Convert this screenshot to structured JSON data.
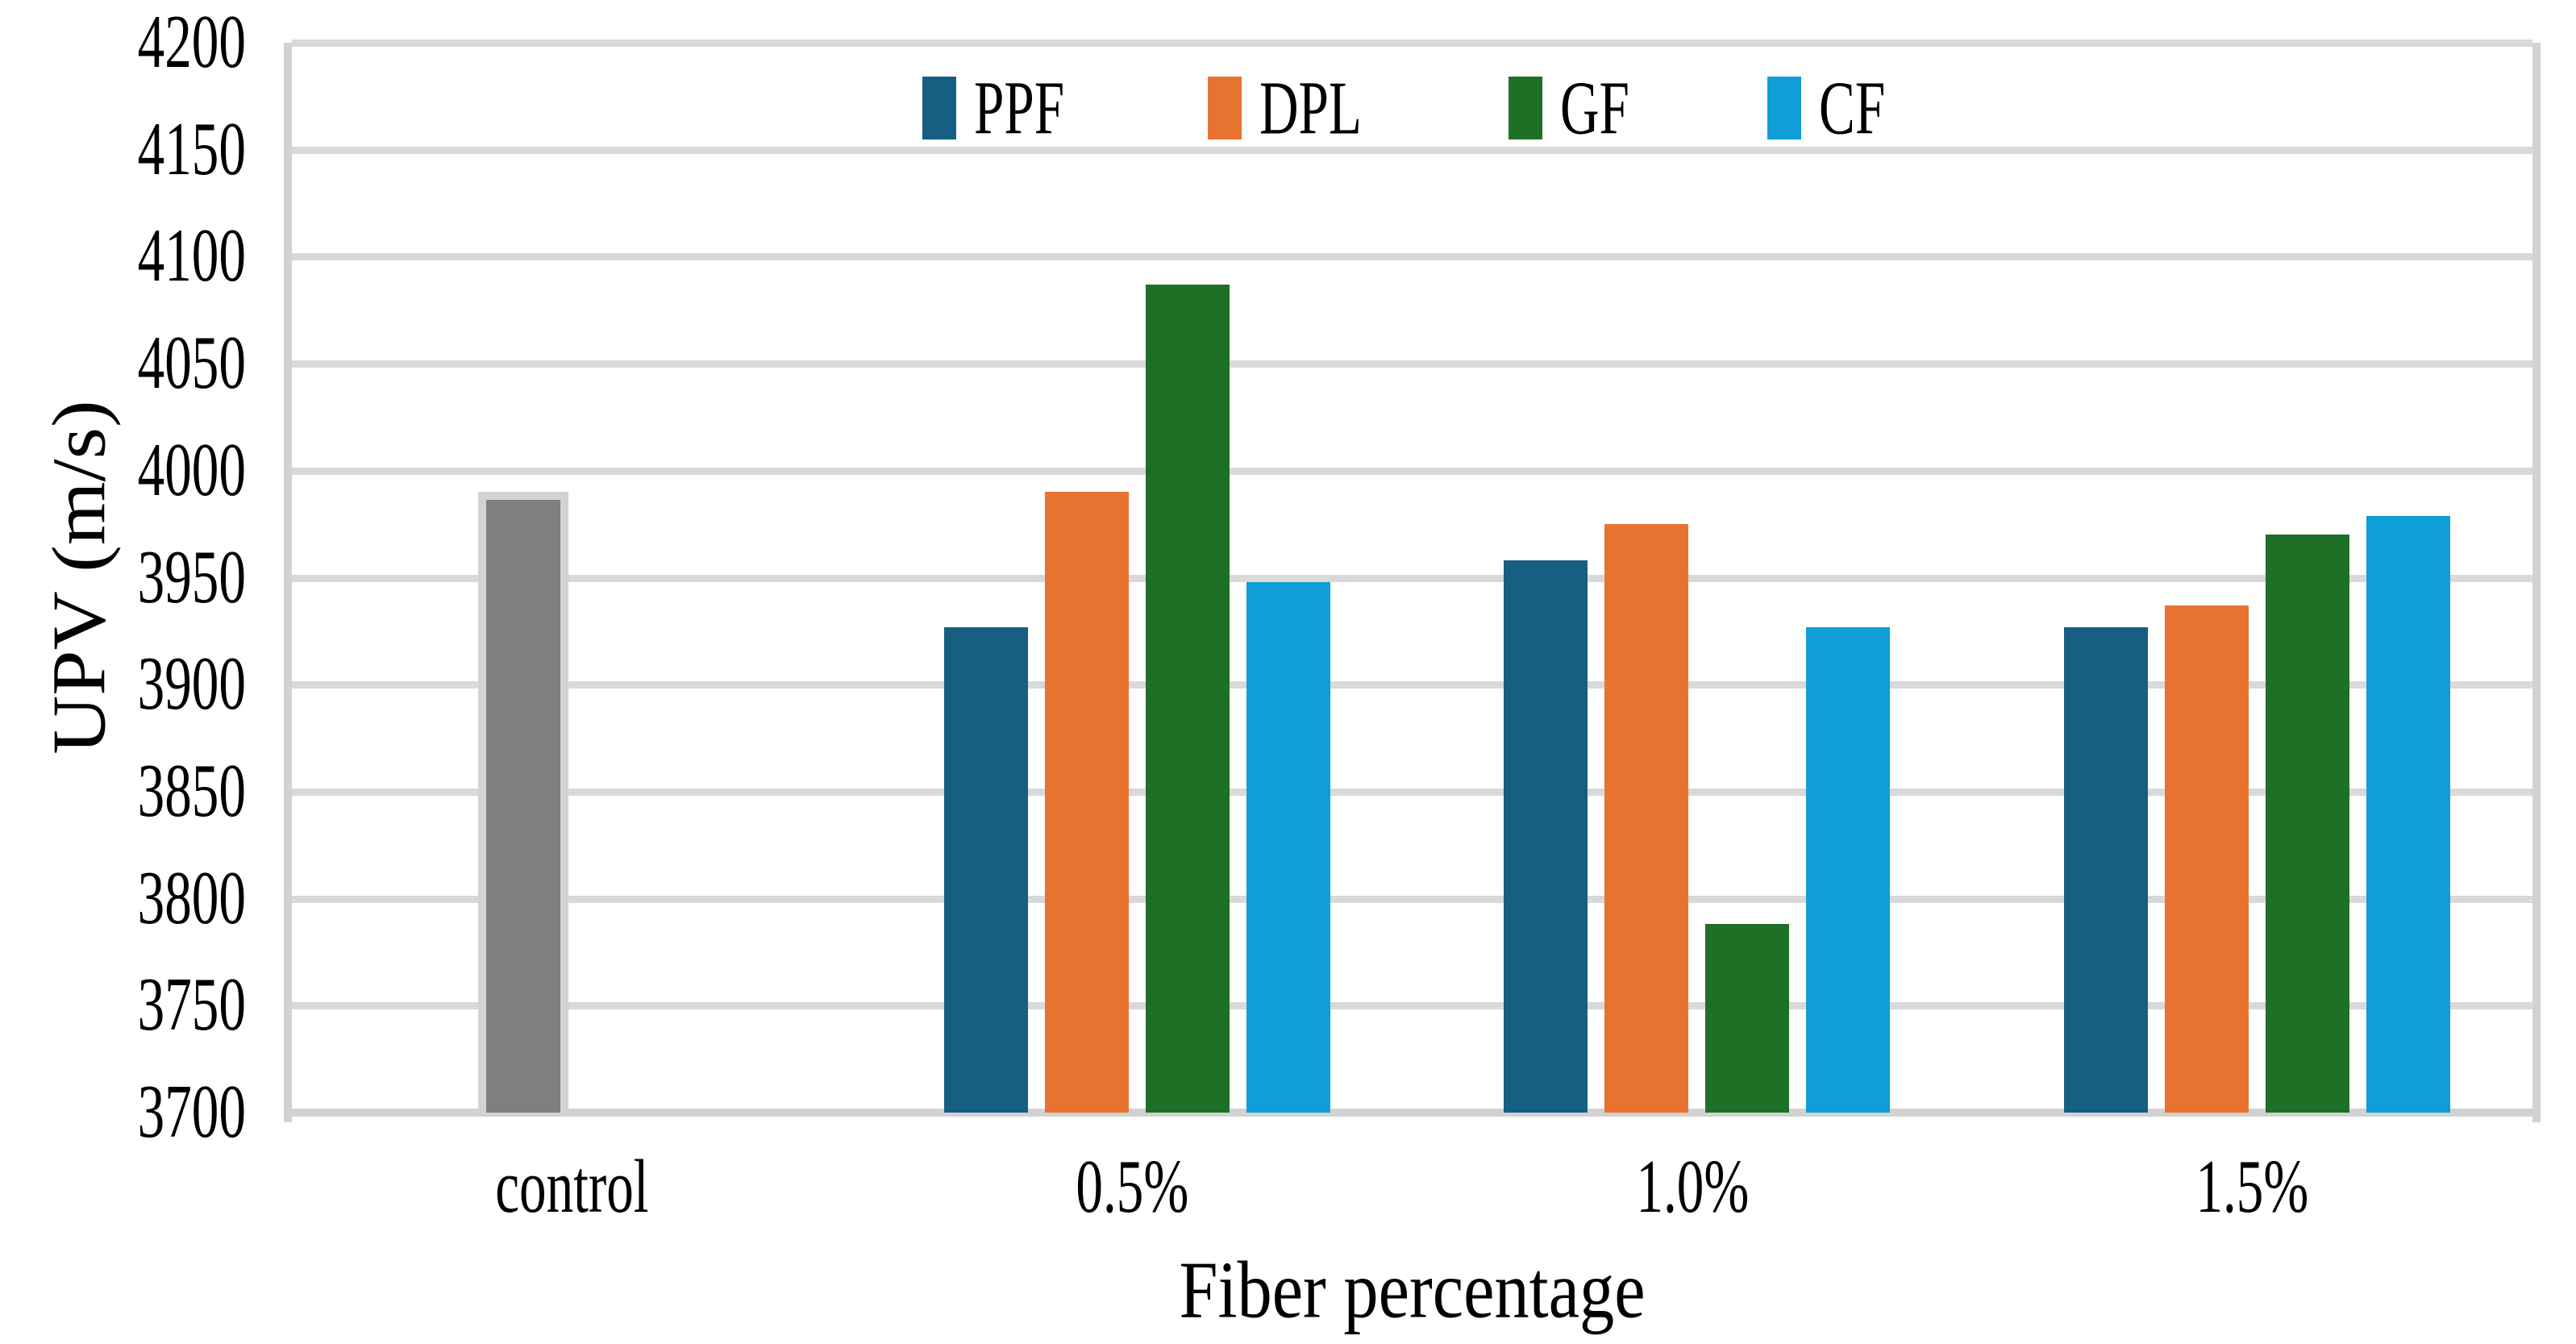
{
  "figure": {
    "background": "#ffffff"
  },
  "chart_data": {
    "type": "bar",
    "title": "",
    "xlabel": "Fiber percentage",
    "ylabel": "UPV (m/s)",
    "categories": [
      "control",
      "0.5%",
      "1.0%",
      "1.5%"
    ],
    "series": [
      {
        "name": "control",
        "color": "#7f7f7f",
        "border_color": "#d3d3d3",
        "in_legend": false,
        "values": [
          3990,
          null,
          null,
          null
        ]
      },
      {
        "name": "PPF",
        "color": "#165f82",
        "in_legend": true,
        "values": [
          null,
          3927,
          3958,
          3927
        ]
      },
      {
        "name": "DPL",
        "color": "#e87330",
        "in_legend": true,
        "values": [
          null,
          3990,
          3975,
          3937
        ]
      },
      {
        "name": "GF",
        "color": "#1e7026",
        "in_legend": true,
        "values": [
          null,
          4087,
          3788,
          3970
        ]
      },
      {
        "name": "CF",
        "color": "#0f9ed8",
        "in_legend": true,
        "values": [
          null,
          3948,
          3927,
          3979
        ]
      }
    ],
    "legend": {
      "position": "top-center",
      "entries": [
        "PPF",
        "DPL",
        "GF",
        "CF"
      ]
    },
    "ylim": [
      3700,
      4200
    ],
    "ytick_step": 50,
    "grid": true,
    "gridline_color": "#d9d9d9",
    "axis_line_color": "#d2d2d2"
  }
}
